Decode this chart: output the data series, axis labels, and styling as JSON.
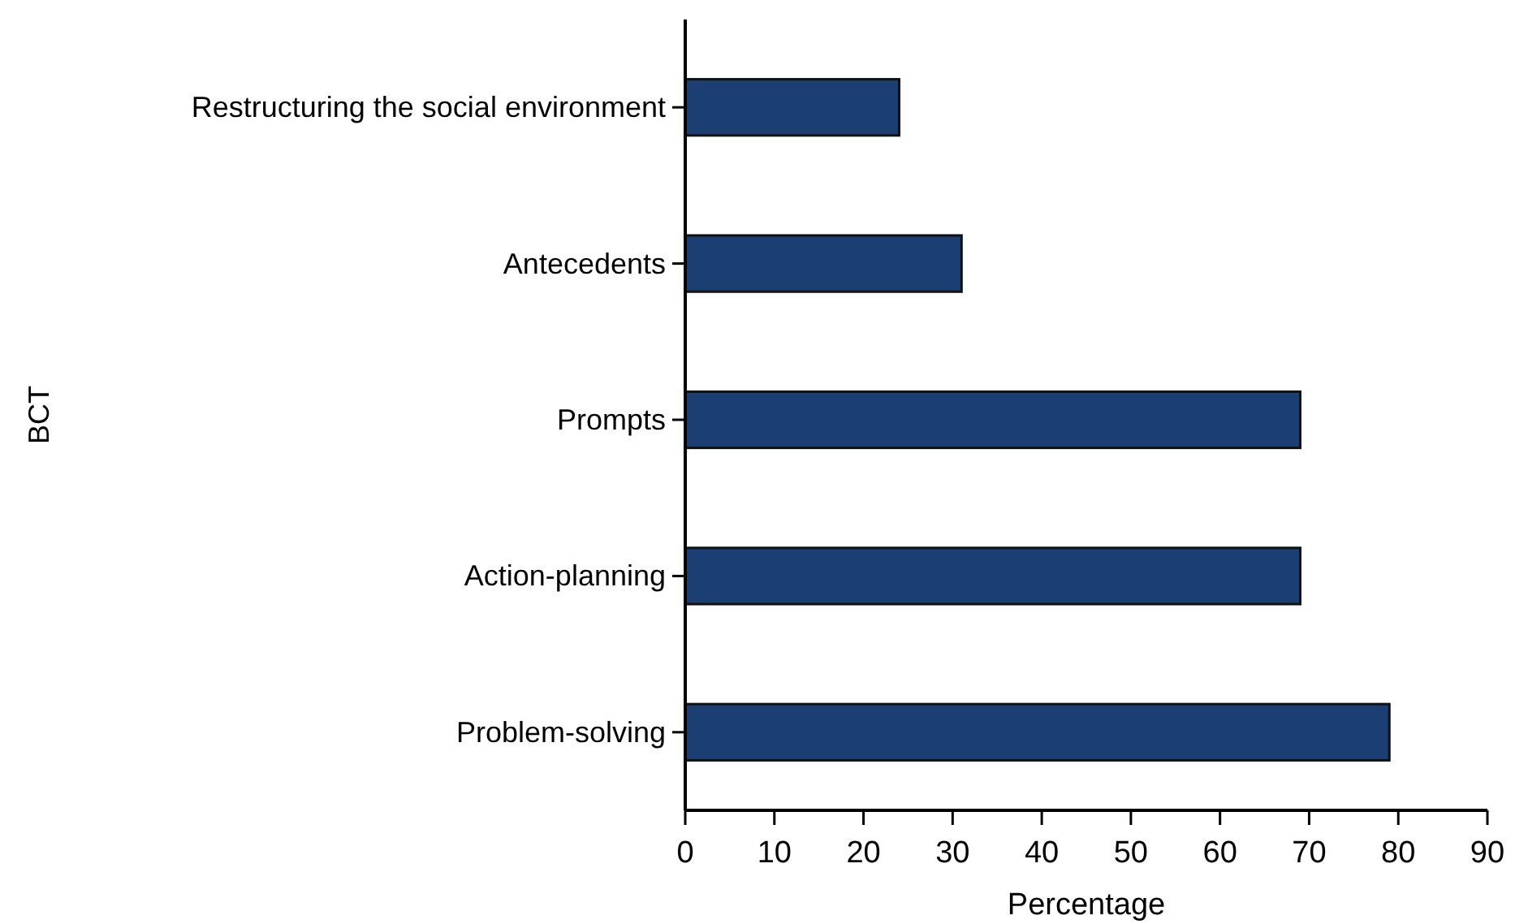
{
  "chart_data": {
    "type": "bar",
    "orientation": "horizontal",
    "xlabel": "Percentage",
    "ylabel": "BCT",
    "categories": [
      "Restructuring the social environment",
      "Antecedents",
      "Prompts",
      "Action-planning",
      "Problem-solving"
    ],
    "values": [
      24,
      31,
      69,
      69,
      79
    ],
    "color": "#1c3f73",
    "xlim": [
      0,
      90
    ],
    "xticks": [
      0,
      10,
      20,
      30,
      40,
      50,
      60,
      70,
      80,
      90
    ],
    "grid": false
  }
}
